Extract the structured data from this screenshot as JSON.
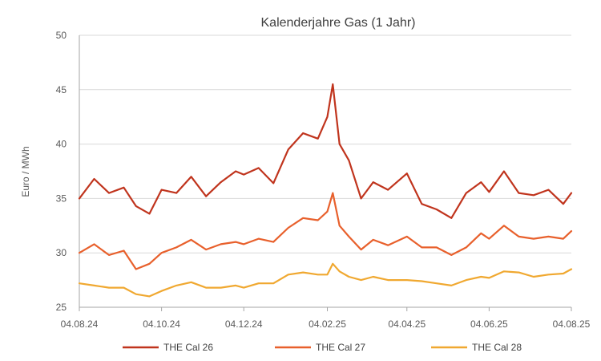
{
  "chart_data": {
    "type": "line",
    "title": "Kalenderjahre Gas (1 Jahr)",
    "xlabel": "",
    "ylabel": "Euro / MWh",
    "ylim": [
      25,
      50
    ],
    "yticks": [
      25,
      30,
      35,
      40,
      45,
      50
    ],
    "xlim": [
      "04.08.24",
      "04.08.25"
    ],
    "xticks": [
      "04.08.24",
      "04.10.24",
      "04.12.24",
      "04.02.25",
      "04.04.25",
      "04.06.25",
      "04.08.25"
    ],
    "grid": "horizontal",
    "legend_position": "bottom",
    "x": [
      "04.08.24",
      "15.08.24",
      "26.08.24",
      "06.09.24",
      "15.09.24",
      "25.09.24",
      "04.10.24",
      "15.10.24",
      "26.10.24",
      "06.11.24",
      "17.11.24",
      "28.11.24",
      "04.12.24",
      "15.12.24",
      "26.12.24",
      "06.01.25",
      "17.01.25",
      "28.01.25",
      "04.02.25",
      "08.02.25",
      "13.02.25",
      "20.02.25",
      "01.03.25",
      "10.03.25",
      "21.03.25",
      "04.04.25",
      "15.04.25",
      "26.04.25",
      "07.05.25",
      "18.05.25",
      "29.05.25",
      "04.06.25",
      "15.06.25",
      "26.06.25",
      "07.07.25",
      "18.07.25",
      "29.07.25",
      "04.08.25"
    ],
    "series": [
      {
        "name": "THE Cal 26",
        "color": "#c0341d",
        "values": [
          35.0,
          36.8,
          35.5,
          36.0,
          34.3,
          33.6,
          35.8,
          35.5,
          37.0,
          35.2,
          36.5,
          37.5,
          37.2,
          37.8,
          36.4,
          39.5,
          41.0,
          40.5,
          42.5,
          45.5,
          40.0,
          38.5,
          35.0,
          36.5,
          35.8,
          37.3,
          34.5,
          34.0,
          33.2,
          35.5,
          36.5,
          35.6,
          37.5,
          35.5,
          35.3,
          35.8,
          34.5,
          35.5
        ]
      },
      {
        "name": "THE Cal 27",
        "color": "#e8602c",
        "values": [
          30.0,
          30.8,
          29.8,
          30.2,
          28.5,
          29.0,
          30.0,
          30.5,
          31.2,
          30.3,
          30.8,
          31.0,
          30.8,
          31.3,
          31.0,
          32.3,
          33.2,
          33.0,
          33.8,
          35.5,
          32.5,
          31.5,
          30.3,
          31.2,
          30.7,
          31.5,
          30.5,
          30.5,
          29.8,
          30.5,
          31.8,
          31.3,
          32.5,
          31.5,
          31.3,
          31.5,
          31.3,
          32.0
        ]
      },
      {
        "name": "THE Cal 28",
        "color": "#f0a830",
        "values": [
          27.2,
          27.0,
          26.8,
          26.8,
          26.2,
          26.0,
          26.5,
          27.0,
          27.3,
          26.8,
          26.8,
          27.0,
          26.8,
          27.2,
          27.2,
          28.0,
          28.2,
          28.0,
          28.0,
          29.0,
          28.3,
          27.8,
          27.5,
          27.8,
          27.5,
          27.5,
          27.4,
          27.2,
          27.0,
          27.5,
          27.8,
          27.7,
          28.3,
          28.2,
          27.8,
          28.0,
          28.1,
          28.5
        ]
      }
    ]
  }
}
